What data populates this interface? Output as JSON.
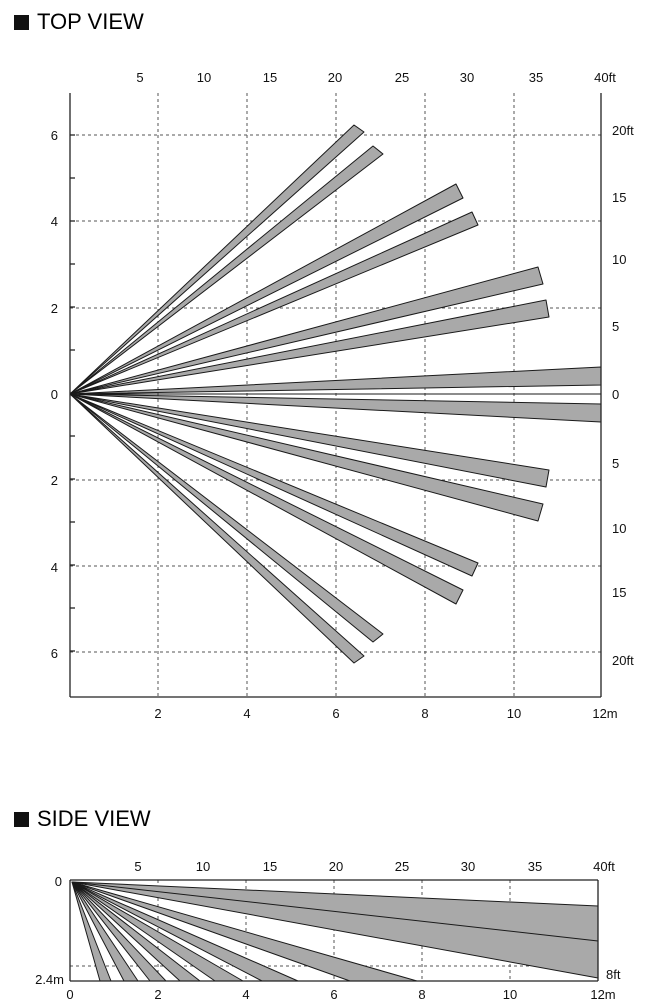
{
  "top_view": {
    "title": "TOP VIEW",
    "m_ticks_x": [
      "2",
      "4",
      "6",
      "8",
      "10",
      "12m"
    ],
    "ft_ticks_top": [
      "5",
      "10",
      "15",
      "20",
      "25",
      "30",
      "35",
      "40ft"
    ],
    "m_ticks_left": [
      "6",
      "4",
      "2",
      "0",
      "2",
      "4",
      "6"
    ],
    "ft_ticks_right": [
      "20ft",
      "15",
      "10",
      "5",
      "0",
      "5",
      "10",
      "15",
      "20ft"
    ]
  },
  "side_view": {
    "title": "SIDE VIEW",
    "ft_ticks_top": [
      "5",
      "10",
      "15",
      "20",
      "25",
      "30",
      "35",
      "40ft"
    ],
    "m_ticks_bottom": [
      "0",
      "2",
      "4",
      "6",
      "8",
      "10",
      "12m"
    ],
    "left_top_label": "0",
    "left_bottom_label": "2.4m",
    "right_bottom_label": "8ft"
  },
  "colors": {
    "beam_fill": "#a9a9a9",
    "outline": "#1a1a1a"
  }
}
